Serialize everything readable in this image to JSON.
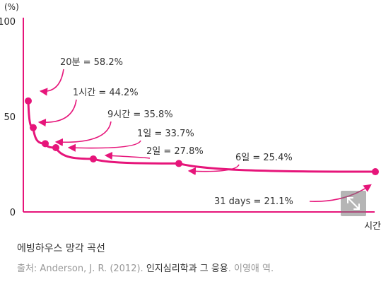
{
  "chart_data": {
    "type": "line",
    "ylabel": "(%)",
    "xlabel": "시간",
    "ylim": [
      0,
      100
    ],
    "yticks": [
      "0",
      "50",
      "100"
    ],
    "series_color": "#e6157a",
    "x": [
      "20분",
      "1시간",
      "9시간",
      "1일",
      "2일",
      "6일",
      "31 days"
    ],
    "values": [
      58.2,
      44.2,
      35.8,
      33.7,
      27.8,
      25.4,
      21.1
    ],
    "annotations": [
      "20분 = 58.2%",
      "1시간 = 44.2%",
      "9시간 = 35.8%",
      "1일 = 33.7%",
      "2일 = 27.8%",
      "6일 = 25.4%",
      "31 days = 21.1%"
    ]
  },
  "caption": "에빙하우스 망각 곡선",
  "source": {
    "prefix": "출처: Anderson, J. R. (2012). ",
    "book": "인지심리학과 그 응용",
    "suffix": ". 이영애 역."
  },
  "expand_icon": "expand-arrows-icon"
}
